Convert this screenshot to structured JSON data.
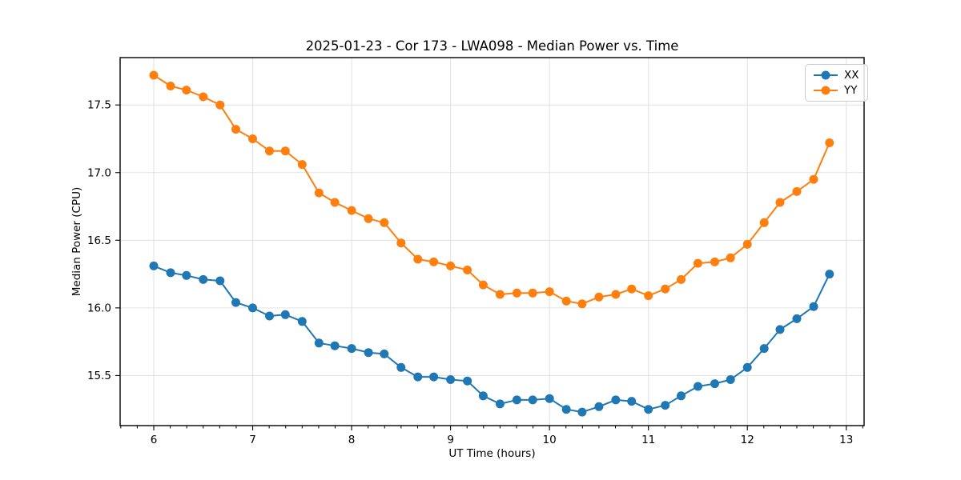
{
  "figure": {
    "background": "#ffffff",
    "axis_color": "#000000",
    "grid_color": "#e3e3e3"
  },
  "chart_data": {
    "type": "line",
    "title": "2025-01-23 - Cor 173 - LWA098 - Median Power vs. Time",
    "xlabel": "UT Time (hours)",
    "ylabel": "Median Power (CPU)",
    "xlim": [
      5.66,
      13.18
    ],
    "ylim": [
      15.13,
      17.85
    ],
    "x_major_ticks": [
      6,
      7,
      8,
      9,
      10,
      11,
      12,
      13
    ],
    "y_major_ticks": [
      15.5,
      16.0,
      16.5,
      17.0,
      17.5
    ],
    "x_minor_step_hours": 0.1667,
    "grid": true,
    "legend_position": "upper right",
    "marker": "circle",
    "x": [
      6.0,
      6.17,
      6.33,
      6.5,
      6.67,
      6.83,
      7.0,
      7.17,
      7.33,
      7.5,
      7.67,
      7.83,
      8.0,
      8.17,
      8.33,
      8.5,
      8.67,
      8.83,
      9.0,
      9.17,
      9.33,
      9.5,
      9.67,
      9.83,
      10.0,
      10.17,
      10.33,
      10.5,
      10.67,
      10.83,
      11.0,
      11.17,
      11.33,
      11.5,
      11.67,
      11.83,
      12.0,
      12.17,
      12.33,
      12.5,
      12.67,
      12.83
    ],
    "series": [
      {
        "name": "XX",
        "color": "#1f77b4",
        "values": [
          16.31,
          16.26,
          16.24,
          16.21,
          16.2,
          16.04,
          16.0,
          15.94,
          15.95,
          15.9,
          15.74,
          15.72,
          15.7,
          15.67,
          15.66,
          15.56,
          15.49,
          15.49,
          15.47,
          15.46,
          15.35,
          15.29,
          15.32,
          15.32,
          15.33,
          15.25,
          15.23,
          15.27,
          15.32,
          15.31,
          15.25,
          15.28,
          15.35,
          15.42,
          15.44,
          15.47,
          15.56,
          15.7,
          15.84,
          15.92,
          16.01,
          16.25
        ]
      },
      {
        "name": "YY",
        "color": "#ff7f0e",
        "values": [
          17.72,
          17.64,
          17.61,
          17.56,
          17.5,
          17.32,
          17.25,
          17.16,
          17.16,
          17.06,
          16.85,
          16.78,
          16.72,
          16.66,
          16.63,
          16.48,
          16.36,
          16.34,
          16.31,
          16.28,
          16.17,
          16.1,
          16.11,
          16.11,
          16.12,
          16.05,
          16.03,
          16.08,
          16.1,
          16.14,
          16.09,
          16.14,
          16.21,
          16.33,
          16.34,
          16.37,
          16.47,
          16.63,
          16.78,
          16.86,
          16.95,
          17.22
        ]
      }
    ]
  }
}
